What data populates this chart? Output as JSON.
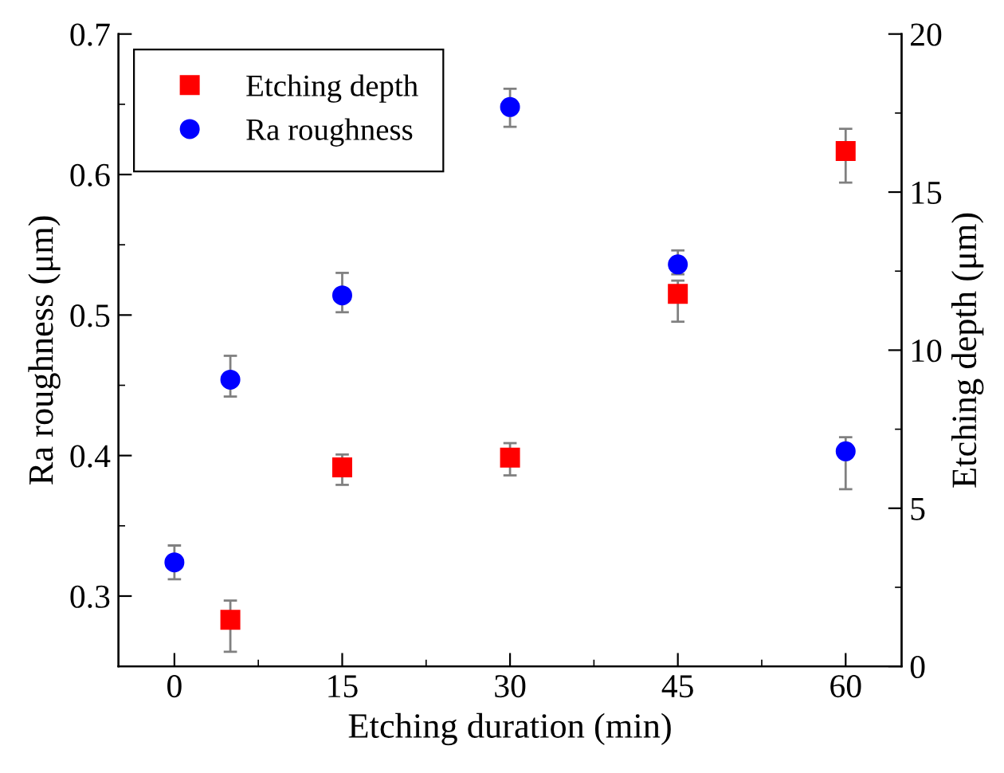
{
  "chart_data": {
    "type": "scatter",
    "xlabel": "Etching duration (min)",
    "ylabel": "Ra roughness (μm)",
    "y2label": "Etching depth (μm)",
    "xlim": [
      -5,
      65
    ],
    "xticks": [
      0,
      15,
      30,
      45,
      60
    ],
    "ylim": [
      0.25,
      0.7
    ],
    "yticks": [
      0.3,
      0.4,
      0.5,
      0.6,
      0.7
    ],
    "y2lim": [
      0,
      20
    ],
    "y2ticks": [
      0,
      5,
      10,
      15,
      20
    ],
    "legend": "top left",
    "grid": false,
    "series": [
      {
        "name": "Etching depth",
        "color": "#ff0000",
        "axis": "y2",
        "marker": "square",
        "x": [
          5,
          15,
          30,
          45,
          60
        ],
        "values": [
          1.47,
          6.29,
          6.6,
          11.78,
          16.3
        ],
        "errors": [
          [
            0.46,
            2.08
          ],
          [
            5.74,
            6.7
          ],
          [
            6.04,
            7.06
          ],
          [
            10.9,
            12.2
          ],
          [
            15.3,
            17.0
          ]
        ]
      },
      {
        "name": "Ra roughness",
        "color": "#0000ff",
        "axis": "y",
        "marker": "circle",
        "x": [
          0,
          5,
          15,
          30,
          45,
          60
        ],
        "values": [
          0.324,
          0.454,
          0.514,
          0.648,
          0.536,
          0.403
        ],
        "errors": [
          [
            0.312,
            0.336
          ],
          [
            0.442,
            0.471
          ],
          [
            0.502,
            0.53
          ],
          [
            0.634,
            0.661
          ],
          [
            0.529,
            0.546
          ],
          [
            0.376,
            0.413
          ]
        ]
      }
    ]
  }
}
